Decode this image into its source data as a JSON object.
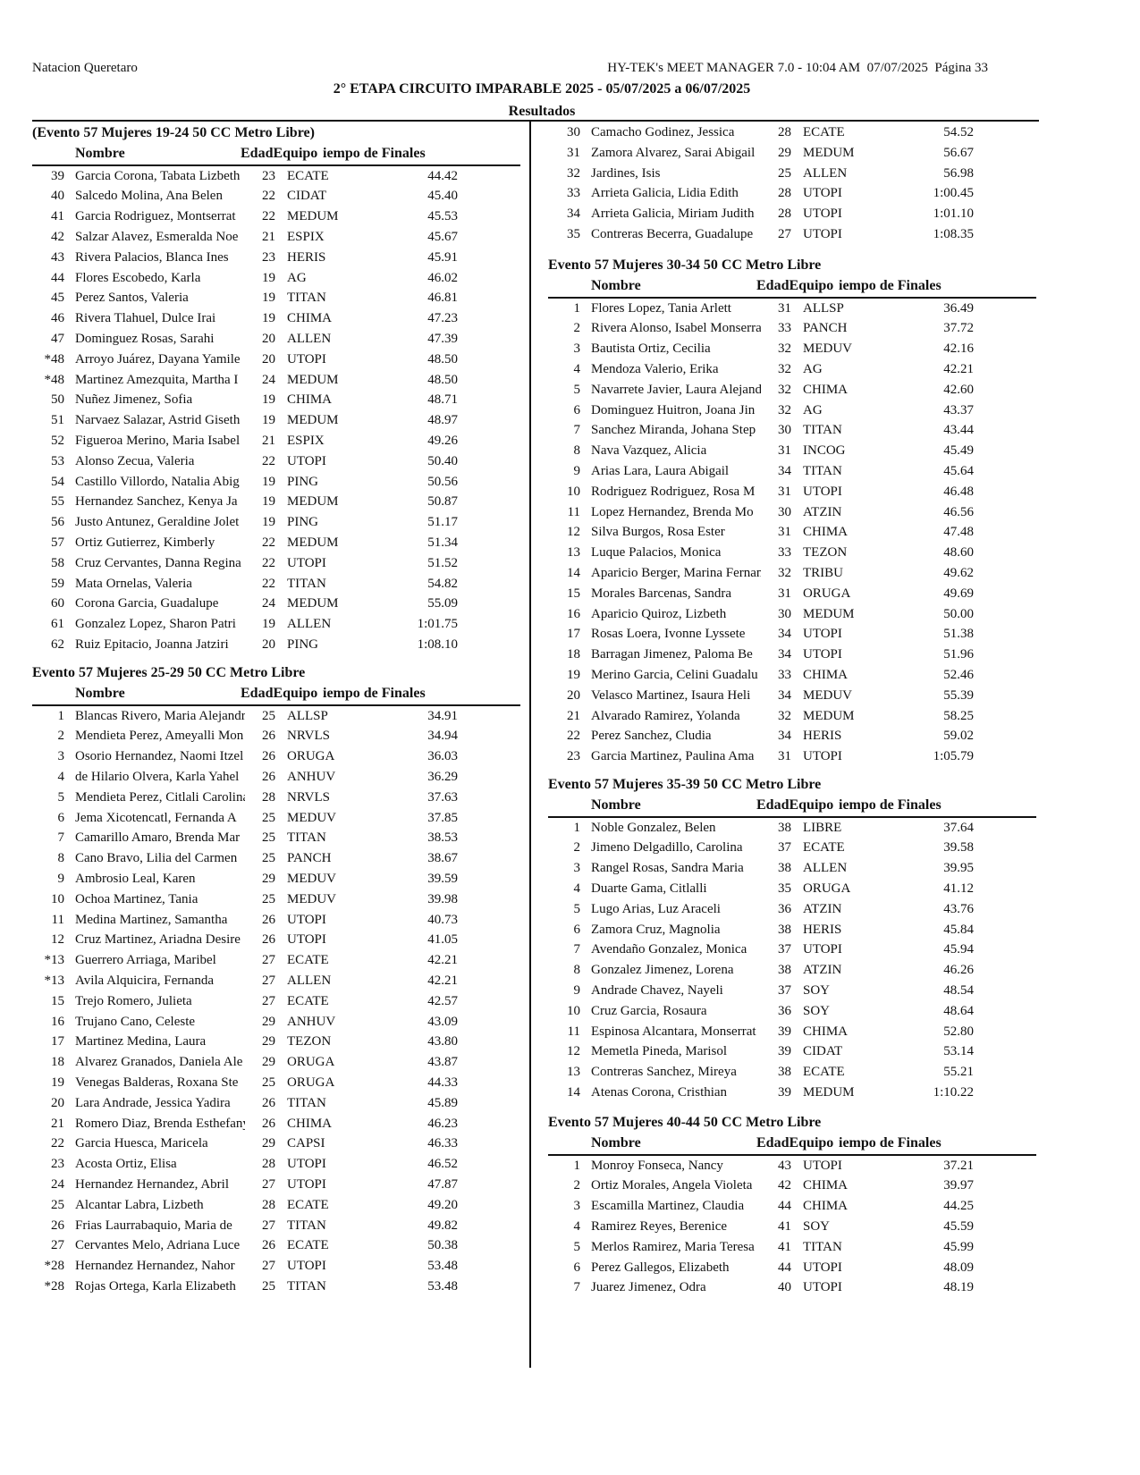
{
  "header": {
    "organization": "Natacion Queretaro",
    "software": "HY-TEK's MEET MANAGER 7.0 - 10:04 AM  07/07/2025  Página 33",
    "meet_title": "2° ETAPA CIRCUITO IMPARABLE 2025 - 05/07/2025 a 06/07/2025",
    "results_label": "Resultados"
  },
  "columns": {
    "name": "Nombre",
    "age_team": "EdadEquipo",
    "time": "iempo de Finales"
  },
  "sections": [
    {
      "id": "l1",
      "title": "(Evento 57  Mujeres 19-24 50 CC Metro Libre)",
      "rows": [
        [
          "39",
          "Garcia Corona, Tabata Lizbeth",
          "23",
          "ECATE",
          "44.42"
        ],
        [
          "40",
          "Salcedo Molina, Ana Belen",
          "22",
          "CIDAT",
          "45.40"
        ],
        [
          "41",
          "Garcia Rodriguez, Montserrat",
          "22",
          "MEDUM",
          "45.53"
        ],
        [
          "42",
          "Salzar Alavez, Esmeralda Noe",
          "21",
          "ESPIX",
          "45.67"
        ],
        [
          "43",
          "Rivera Palacios, Blanca Ines",
          "23",
          "HERIS",
          "45.91"
        ],
        [
          "44",
          "Flores Escobedo, Karla",
          "19",
          "AG",
          "46.02"
        ],
        [
          "45",
          "Perez Santos, Valeria",
          "19",
          "TITAN",
          "46.81"
        ],
        [
          "46",
          "Rivera Tlahuel, Dulce Irai",
          "19",
          "CHIMA",
          "47.23"
        ],
        [
          "47",
          "Dominguez Rosas, Sarahi",
          "20",
          "ALLEN",
          "47.39"
        ],
        [
          "*48",
          "Arroyo Juárez, Dayana Yamile",
          "20",
          "UTOPI",
          "48.50"
        ],
        [
          "*48",
          "Martinez Amezquita, Martha I",
          "24",
          "MEDUM",
          "48.50"
        ],
        [
          "50",
          "Nuñez Jimenez, Sofia",
          "19",
          "CHIMA",
          "48.71"
        ],
        [
          "51",
          "Narvaez Salazar, Astrid Giseth",
          "19",
          "MEDUM",
          "48.97"
        ],
        [
          "52",
          "Figueroa Merino, Maria Isabel",
          "21",
          "ESPIX",
          "49.26"
        ],
        [
          "53",
          "Alonso Zecua, Valeria",
          "22",
          "UTOPI",
          "50.40"
        ],
        [
          "54",
          "Castillo Villordo, Natalia Abig",
          "19",
          "PING",
          "50.56"
        ],
        [
          "55",
          "Hernandez Sanchez, Kenya Ja",
          "19",
          "MEDUM",
          "50.87"
        ],
        [
          "56",
          "Justo Antunez, Geraldine Jolet",
          "19",
          "PING",
          "51.17"
        ],
        [
          "57",
          "Ortiz Gutierrez, Kimberly",
          "22",
          "MEDUM",
          "51.34"
        ],
        [
          "58",
          "Cruz Cervantes, Danna Regina",
          "22",
          "UTOPI",
          "51.52"
        ],
        [
          "59",
          "Mata Ornelas, Valeria",
          "22",
          "TITAN",
          "54.82"
        ],
        [
          "60",
          "Corona Garcia, Guadalupe",
          "24",
          "MEDUM",
          "55.09"
        ],
        [
          "61",
          "Gonzalez Lopez, Sharon Patri",
          "19",
          "ALLEN",
          "1:01.75"
        ],
        [
          "62",
          "Ruiz Epitacio, Joanna Jatziri",
          "20",
          "PING",
          "1:08.10"
        ]
      ]
    },
    {
      "id": "l2",
      "title": "Evento 57  Mujeres 25-29 50 CC Metro Libre",
      "rows": [
        [
          "1",
          "Blancas Rivero, Maria Alejandra",
          "25",
          "ALLSP",
          "34.91"
        ],
        [
          "2",
          "Mendieta Perez, Ameyalli Mon",
          "26",
          "NRVLS",
          "34.94"
        ],
        [
          "3",
          "Osorio Hernandez, Naomi Itzel",
          "26",
          "ORUGA",
          "36.03"
        ],
        [
          "4",
          "de Hilario Olvera, Karla Yahel",
          "26",
          "ANHUV",
          "36.29"
        ],
        [
          "5",
          "Mendieta Perez, Citlali Carolina",
          "28",
          "NRVLS",
          "37.63"
        ],
        [
          "6",
          "Jema Xicotencatl, Fernanda A",
          "25",
          "MEDUV",
          "37.85"
        ],
        [
          "7",
          "Camarillo Amaro, Brenda Mar",
          "25",
          "TITAN",
          "38.53"
        ],
        [
          "8",
          "Cano Bravo, Lilia del Carmen",
          "25",
          "PANCH",
          "38.67"
        ],
        [
          "9",
          "Ambrosio Leal, Karen",
          "29",
          "MEDUV",
          "39.59"
        ],
        [
          "10",
          "Ochoa Martinez, Tania",
          "25",
          "MEDUV",
          "39.98"
        ],
        [
          "11",
          "Medina Martinez, Samantha",
          "26",
          "UTOPI",
          "40.73"
        ],
        [
          "12",
          "Cruz Martinez, Ariadna Desire",
          "26",
          "UTOPI",
          "41.05"
        ],
        [
          "*13",
          "Guerrero Arriaga, Maribel",
          "27",
          "ECATE",
          "42.21"
        ],
        [
          "*13",
          "Avila Alquicira, Fernanda",
          "27",
          "ALLEN",
          "42.21"
        ],
        [
          "15",
          "Trejo Romero, Julieta",
          "27",
          "ECATE",
          "42.57"
        ],
        [
          "16",
          "Trujano Cano, Celeste",
          "29",
          "ANHUV",
          "43.09"
        ],
        [
          "17",
          "Martinez Medina, Laura",
          "29",
          "TEZON",
          "43.80"
        ],
        [
          "18",
          "Alvarez Granados, Daniela Ale",
          "29",
          "ORUGA",
          "43.87"
        ],
        [
          "19",
          "Venegas Balderas, Roxana Ste",
          "25",
          "ORUGA",
          "44.33"
        ],
        [
          "20",
          "Lara Andrade, Jessica Yadira",
          "26",
          "TITAN",
          "45.89"
        ],
        [
          "21",
          "Romero Diaz, Brenda Esthefany",
          "26",
          "CHIMA",
          "46.23"
        ],
        [
          "22",
          "Garcia Huesca, Maricela",
          "29",
          "CAPSI",
          "46.33"
        ],
        [
          "23",
          "Acosta Ortiz, Elisa",
          "28",
          "UTOPI",
          "46.52"
        ],
        [
          "24",
          "Hernandez Hernandez, Abril",
          "27",
          "UTOPI",
          "47.87"
        ],
        [
          "25",
          "Alcantar Labra, Lizbeth",
          "28",
          "ECATE",
          "49.20"
        ],
        [
          "26",
          "Frias Laurrabaquio, Maria de",
          "27",
          "TITAN",
          "49.82"
        ],
        [
          "27",
          "Cervantes Melo, Adriana Luce",
          "26",
          "ECATE",
          "50.38"
        ],
        [
          "*28",
          "Hernandez Hernandez, Nahor",
          "27",
          "UTOPI",
          "53.48"
        ],
        [
          "*28",
          "Rojas Ortega, Karla Elizabeth",
          "25",
          "TITAN",
          "53.48"
        ]
      ]
    },
    {
      "id": "r0",
      "title": "",
      "rows": [
        [
          "30",
          "Camacho Godinez, Jessica",
          "28",
          "ECATE",
          "54.52"
        ],
        [
          "31",
          "Zamora Alvarez, Sarai Abigail",
          "29",
          "MEDUM",
          "56.67"
        ],
        [
          "32",
          "Jardines, Isis",
          "25",
          "ALLEN",
          "56.98"
        ],
        [
          "33",
          "Arrieta Galicia, Lidia Edith",
          "28",
          "UTOPI",
          "1:00.45"
        ],
        [
          "34",
          "Arrieta Galicia, Miriam Judith",
          "28",
          "UTOPI",
          "1:01.10"
        ],
        [
          "35",
          "Contreras Becerra, Guadalupe",
          "27",
          "UTOPI",
          "1:08.35"
        ]
      ]
    },
    {
      "id": "r1",
      "title": "Evento 57  Mujeres 30-34 50 CC Metro Libre",
      "rows": [
        [
          "1",
          "Flores Lopez, Tania Arlett",
          "31",
          "ALLSP",
          "36.49"
        ],
        [
          "2",
          "Rivera Alonso, Isabel Monserrat",
          "33",
          "PANCH",
          "37.72"
        ],
        [
          "3",
          "Bautista Ortiz, Cecilia",
          "32",
          "MEDUV",
          "42.16"
        ],
        [
          "4",
          "Mendoza Valerio, Erika",
          "32",
          "AG",
          "42.21"
        ],
        [
          "5",
          "Navarrete Javier, Laura Alejandra",
          "32",
          "CHIMA",
          "42.60"
        ],
        [
          "6",
          "Dominguez Huitron, Joana Jin",
          "32",
          "AG",
          "43.37"
        ],
        [
          "7",
          "Sanchez Miranda, Johana Step",
          "30",
          "TITAN",
          "43.44"
        ],
        [
          "8",
          "Nava Vazquez, Alicia",
          "31",
          "INCOG",
          "45.49"
        ],
        [
          "9",
          "Arias Lara, Laura Abigail",
          "34",
          "TITAN",
          "45.64"
        ],
        [
          "10",
          "Rodriguez Rodriguez, Rosa M",
          "31",
          "UTOPI",
          "46.48"
        ],
        [
          "11",
          "Lopez Hernandez, Brenda Mo",
          "30",
          "ATZIN",
          "46.56"
        ],
        [
          "12",
          "Silva Burgos, Rosa Ester",
          "31",
          "CHIMA",
          "47.48"
        ],
        [
          "13",
          "Luque Palacios, Monica",
          "33",
          "TEZON",
          "48.60"
        ],
        [
          "14",
          "Aparicio Berger, Marina Fernanda",
          "32",
          "TRIBU",
          "49.62"
        ],
        [
          "15",
          "Morales Barcenas, Sandra",
          "31",
          "ORUGA",
          "49.69"
        ],
        [
          "16",
          "Aparicio Quiroz, Lizbeth",
          "30",
          "MEDUM",
          "50.00"
        ],
        [
          "17",
          "Rosas Loera, Ivonne Lyssete",
          "34",
          "UTOPI",
          "51.38"
        ],
        [
          "18",
          "Barragan Jimenez, Paloma Be",
          "34",
          "UTOPI",
          "51.96"
        ],
        [
          "19",
          "Merino Garcia, Celini Guadalu",
          "33",
          "CHIMA",
          "52.46"
        ],
        [
          "20",
          "Velasco Martinez, Isaura Heli",
          "34",
          "MEDUV",
          "55.39"
        ],
        [
          "21",
          "Alvarado Ramirez, Yolanda",
          "32",
          "MEDUM",
          "58.25"
        ],
        [
          "22",
          "Perez Sanchez, Cludia",
          "34",
          "HERIS",
          "59.02"
        ],
        [
          "23",
          "Garcia Martinez, Paulina Ama",
          "31",
          "UTOPI",
          "1:05.79"
        ]
      ]
    },
    {
      "id": "r2",
      "title": "Evento 57  Mujeres 35-39 50 CC Metro Libre",
      "rows": [
        [
          "1",
          "Noble Gonzalez, Belen",
          "38",
          "LIBRE",
          "37.64"
        ],
        [
          "2",
          "Jimeno Delgadillo, Carolina",
          "37",
          "ECATE",
          "39.58"
        ],
        [
          "3",
          "Rangel Rosas, Sandra Maria",
          "38",
          "ALLEN",
          "39.95"
        ],
        [
          "4",
          "Duarte Gama, Citlalli",
          "35",
          "ORUGA",
          "41.12"
        ],
        [
          "5",
          "Lugo Arias, Luz Araceli",
          "36",
          "ATZIN",
          "43.76"
        ],
        [
          "6",
          "Zamora Cruz, Magnolia",
          "38",
          "HERIS",
          "45.84"
        ],
        [
          "7",
          "Avendaño Gonzalez, Monica",
          "37",
          "UTOPI",
          "45.94"
        ],
        [
          "8",
          "Gonzalez Jimenez, Lorena",
          "38",
          "ATZIN",
          "46.26"
        ],
        [
          "9",
          "Andrade Chavez, Nayeli",
          "37",
          "SOY",
          "48.54"
        ],
        [
          "10",
          "Cruz Garcia, Rosaura",
          "36",
          "SOY",
          "48.64"
        ],
        [
          "11",
          "Espinosa Alcantara, Monserrat",
          "39",
          "CHIMA",
          "52.80"
        ],
        [
          "12",
          "Memetla Pineda, Marisol",
          "39",
          "CIDAT",
          "53.14"
        ],
        [
          "13",
          "Contreras Sanchez, Mireya",
          "38",
          "ECATE",
          "55.21"
        ],
        [
          "14",
          "Atenas Corona, Cristhian",
          "39",
          "MEDUM",
          "1:10.22"
        ]
      ]
    },
    {
      "id": "r3",
      "title": "Evento 57  Mujeres 40-44 50 CC Metro Libre",
      "rows": [
        [
          "1",
          "Monroy Fonseca, Nancy",
          "43",
          "UTOPI",
          "37.21"
        ],
        [
          "2",
          "Ortiz Morales, Angela Violeta",
          "42",
          "CHIMA",
          "39.97"
        ],
        [
          "3",
          "Escamilla Martinez, Claudia",
          "44",
          "CHIMA",
          "44.25"
        ],
        [
          "4",
          "Ramirez Reyes, Berenice",
          "41",
          "SOY",
          "45.59"
        ],
        [
          "5",
          "Merlos Ramirez, Maria Teresa",
          "41",
          "TITAN",
          "45.99"
        ],
        [
          "6",
          "Perez Gallegos, Elizabeth",
          "44",
          "UTOPI",
          "48.09"
        ],
        [
          "7",
          "Juarez Jimenez, Odra",
          "40",
          "UTOPI",
          "48.19"
        ]
      ]
    }
  ]
}
